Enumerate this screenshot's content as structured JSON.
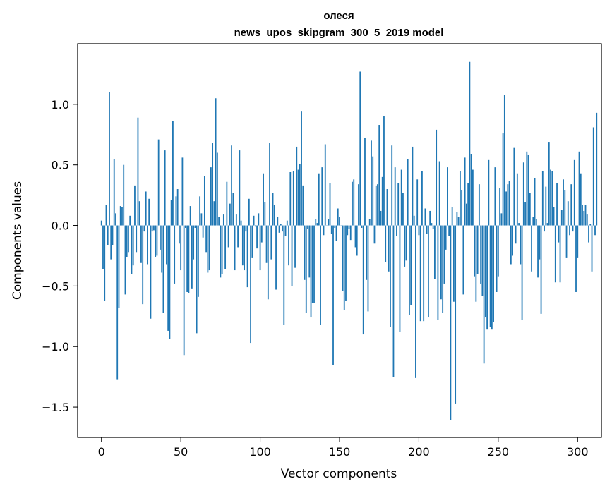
{
  "chart_data": {
    "type": "bar",
    "title_lines": [
      "олеся",
      "news_upos_skipgram_300_5_2019 model"
    ],
    "xlabel": "Vector components",
    "ylabel": "Components values",
    "xlim": [
      -15,
      315
    ],
    "ylim": [
      -1.75,
      1.5
    ],
    "xticks": [
      0,
      50,
      100,
      150,
      200,
      250,
      300
    ],
    "xtick_labels": [
      "0",
      "50",
      "100",
      "150",
      "200",
      "250",
      "300"
    ],
    "yticks": [
      -1.5,
      -1.0,
      -0.5,
      0.0,
      0.5,
      1.0
    ],
    "ytick_labels": [
      "−1.5",
      "−1.0",
      "−0.5",
      "0.0",
      "0.5",
      "1.0"
    ],
    "grid": false,
    "legend": "none",
    "color": "#1f77b4",
    "values": [
      0.04,
      -0.36,
      -0.62,
      0.17,
      -0.16,
      1.1,
      -0.28,
      -0.16,
      0.55,
      0.1,
      -1.27,
      -0.68,
      0.16,
      0.15,
      0.5,
      -0.57,
      -0.26,
      -0.22,
      0.08,
      -0.4,
      -0.33,
      0.33,
      -0.22,
      0.89,
      0.2,
      -0.31,
      -0.65,
      -0.05,
      0.28,
      -0.32,
      0.22,
      -0.77,
      -0.05,
      -0.04,
      -0.26,
      -0.25,
      0.71,
      -0.2,
      -0.39,
      -0.72,
      0.62,
      -0.32,
      -0.87,
      -0.94,
      0.21,
      0.86,
      -0.48,
      0.24,
      0.3,
      -0.15,
      -0.37,
      0.56,
      -1.07,
      -0.02,
      -0.55,
      -0.56,
      0.16,
      -0.52,
      -0.28,
      -0.02,
      -0.89,
      -0.59,
      0.24,
      0.1,
      -0.1,
      0.41,
      -0.22,
      -0.39,
      -0.37,
      0.48,
      0.68,
      0.2,
      1.05,
      0.6,
      0.07,
      -0.43,
      -0.4,
      0.09,
      -0.36,
      0.36,
      -0.18,
      0.18,
      0.66,
      0.27,
      -0.37,
      0.09,
      -0.18,
      0.62,
      0.04,
      -0.33,
      -0.37,
      -0.05,
      -0.51,
      0.22,
      -0.97,
      -0.27,
      0.08,
      -0.01,
      -0.19,
      0.1,
      -0.37,
      -0.14,
      0.43,
      0.19,
      -0.31,
      -0.61,
      0.68,
      -0.28,
      0.27,
      0.17,
      -0.53,
      0.07,
      -0.06,
      0.01,
      -0.05,
      -0.82,
      -0.09,
      0.04,
      -0.33,
      0.44,
      -0.5,
      0.45,
      -0.35,
      0.65,
      0.46,
      0.51,
      0.94,
      0.33,
      -0.45,
      -0.72,
      -0.03,
      -0.43,
      -0.76,
      -0.64,
      -0.64,
      0.05,
      0.02,
      0.43,
      -0.82,
      0.48,
      -0.08,
      0.67,
      0.0,
      0.05,
      0.35,
      -0.07,
      -1.15,
      -0.02,
      -0.13,
      0.14,
      0.07,
      0.0,
      -0.54,
      -0.7,
      -0.62,
      -0.08,
      -0.03,
      -0.12,
      0.36,
      0.38,
      -0.18,
      -0.25,
      0.34,
      1.27,
      -0.02,
      -0.9,
      0.72,
      -0.45,
      -0.71,
      0.05,
      0.7,
      0.57,
      -0.15,
      0.33,
      0.34,
      0.83,
      0.12,
      0.4,
      0.9,
      -0.3,
      0.3,
      -0.38,
      -0.84,
      0.66,
      -1.25,
      0.48,
      -0.09,
      0.35,
      -0.88,
      0.46,
      0.27,
      -0.34,
      -0.29,
      0.55,
      -0.74,
      -0.66,
      0.65,
      0.08,
      -1.26,
      0.38,
      -0.08,
      -0.79,
      0.45,
      -0.79,
      0.14,
      -0.07,
      -0.76,
      0.12,
      0.02,
      -0.03,
      -0.44,
      0.79,
      -0.78,
      0.53,
      -0.61,
      -0.72,
      -0.48,
      -0.2,
      0.48,
      -0.09,
      -1.61,
      0.15,
      -0.63,
      -1.47,
      0.11,
      0.07,
      0.45,
      0.29,
      -0.57,
      0.56,
      0.18,
      0.35,
      1.35,
      0.59,
      0.46,
      -0.42,
      -0.63,
      -0.4,
      0.34,
      -0.48,
      -0.58,
      -1.14,
      -0.76,
      -0.86,
      0.54,
      -0.84,
      -0.86,
      -0.8,
      0.48,
      -0.55,
      -0.42,
      0.31,
      0.1,
      0.76,
      1.08,
      0.28,
      0.34,
      0.37,
      -0.32,
      -0.25,
      0.64,
      -0.15,
      0.43,
      0.02,
      -0.32,
      -0.78,
      0.52,
      0.19,
      0.61,
      0.58,
      0.27,
      -0.38,
      0.07,
      0.39,
      0.05,
      -0.43,
      -0.28,
      -0.73,
      0.45,
      -0.05,
      0.32,
      0.02,
      0.69,
      0.46,
      0.45,
      0.15,
      -0.47,
      0.35,
      -0.14,
      -0.47,
      0.13,
      0.38,
      0.29,
      -0.27,
      0.2,
      -0.08,
      0.34,
      -0.05,
      0.54,
      -0.55,
      -0.27,
      0.61,
      0.43,
      0.17,
      0.12,
      0.17,
      0.09,
      -0.14,
      0.01,
      -0.38,
      0.81,
      -0.08,
      0.93
    ]
  }
}
